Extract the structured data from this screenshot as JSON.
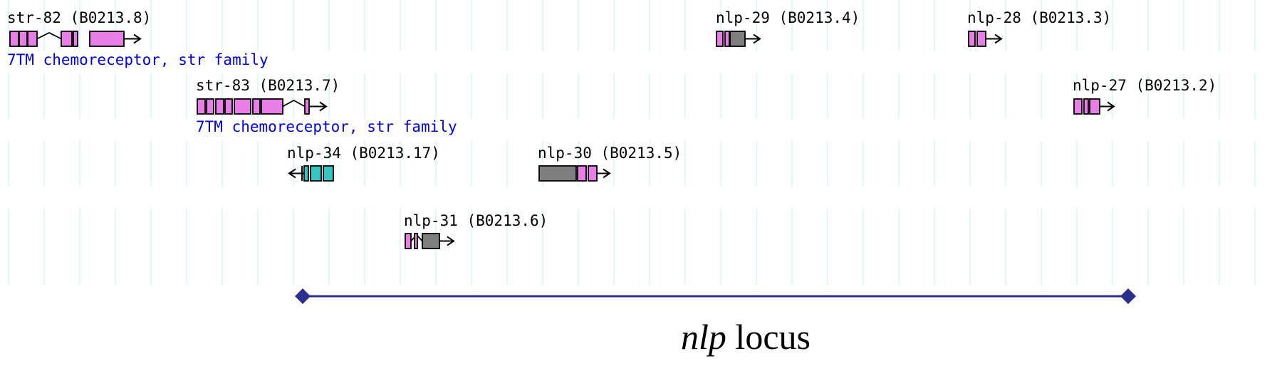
{
  "colors": {
    "background": "#ffffff",
    "grid": "#d8f4f6",
    "exon_pink": "#e87fe6",
    "exon_gray": "#7e7e7e",
    "exon_teal": "#33c4c4",
    "outline": "#000000",
    "label": "#000000",
    "description": "#0000ee",
    "locus_line": "#2b2f8f"
  },
  "genes": [
    {
      "id": "str-82",
      "label": "str-82 (B0213.8)",
      "description": "7TM chemoreceptor, str family",
      "strand": "+",
      "exon_colors": [
        "pink",
        "pink",
        "pink",
        "pink",
        "pink",
        "pink"
      ]
    },
    {
      "id": "nlp-29",
      "label": "nlp-29 (B0213.4)",
      "strand": "+",
      "exon_colors": [
        "pink",
        "pink",
        "gray"
      ]
    },
    {
      "id": "nlp-28",
      "label": "nlp-28 (B0213.3)",
      "strand": "+",
      "exon_colors": [
        "pink",
        "pink"
      ]
    },
    {
      "id": "str-83",
      "label": "str-83 (B0213.7)",
      "description": "7TM chemoreceptor, str family",
      "strand": "+",
      "exon_colors": [
        "pink",
        "pink",
        "pink",
        "pink",
        "pink",
        "pink",
        "pink",
        "pink"
      ]
    },
    {
      "id": "nlp-27",
      "label": "nlp-27 (B0213.2)",
      "strand": "+",
      "exon_colors": [
        "pink",
        "pink"
      ]
    },
    {
      "id": "nlp-34",
      "label": "nlp-34 (B0213.17)",
      "strand": "-",
      "exon_colors": [
        "teal",
        "teal",
        "teal"
      ]
    },
    {
      "id": "nlp-30",
      "label": "nlp-30 (B0213.5)",
      "strand": "+",
      "exon_colors": [
        "gray",
        "pink",
        "pink"
      ]
    },
    {
      "id": "nlp-31",
      "label": "nlp-31 (B0213.6)",
      "strand": "+",
      "exon_colors": [
        "pink",
        "pink",
        "gray"
      ]
    }
  ],
  "locus": {
    "label_italic": "nlp",
    "label_rest": " locus"
  }
}
